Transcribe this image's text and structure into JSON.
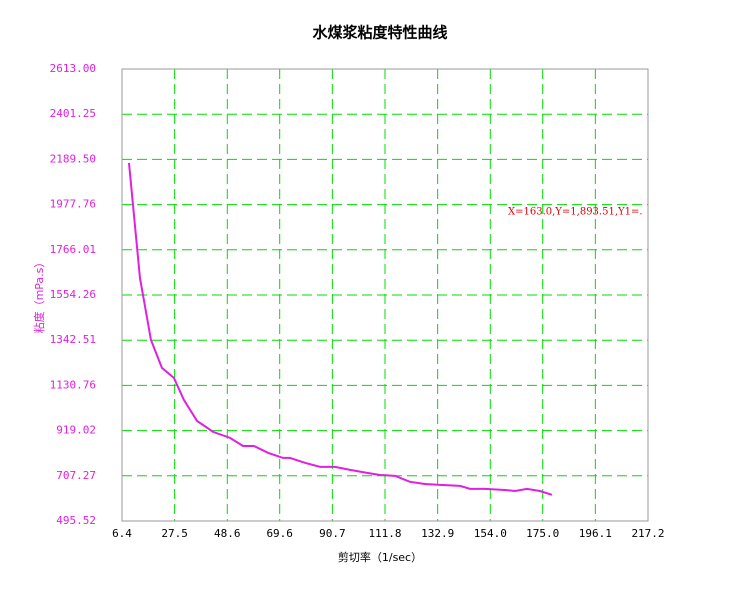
{
  "chart_data": {
    "type": "line",
    "title": "水煤浆粘度特性曲线",
    "xlabel": "剪切率（1/sec）",
    "ylabel": "粘度（mPa.s）",
    "annotation": "X=163.0,Y=1,893.51,Y1=.",
    "x": [
      9.2,
      13.6,
      18.0,
      22.4,
      27.2,
      31.2,
      36.5,
      42.9,
      49.7,
      54.9,
      59.3,
      64.9,
      70.9,
      73.7,
      79.7,
      85.8,
      91.8,
      97.8,
      104.6,
      109.8,
      115.8,
      121.8,
      127.8,
      133.9,
      141.9,
      145.9,
      151.9,
      159.9,
      163.9,
      168.7,
      173.9,
      178.7
    ],
    "series": [
      {
        "name": "粘度",
        "color": "#e020e0",
        "values": [
          2173,
          1634,
          1344,
          1213,
          1166,
          1063,
          964,
          913,
          885,
          847,
          847,
          815,
          791,
          791,
          768,
          749,
          749,
          735,
          721,
          711,
          707,
          679,
          669,
          665,
          660,
          646,
          646,
          641,
          636,
          646,
          636,
          618
        ]
      }
    ],
    "xlim": [
      6.4,
      217.2
    ],
    "xticks": [
      6.4,
      27.5,
      48.6,
      69.6,
      90.7,
      111.8,
      132.9,
      {
        "value": 154.0,
        "label": "154.0"
      },
      {
        "value": 175.0,
        "label": "175.0"
      },
      196.1,
      217.2
    ],
    "ylim": [
      495.52,
      2613.0
    ],
    "yticks": [
      {
        "value": 495.52,
        "label": "495.52"
      },
      {
        "value": 707.27,
        "label": "707.27"
      },
      {
        "value": 919.02,
        "label": "919.02"
      },
      {
        "value": 1130.76,
        "label": "1130.76"
      },
      {
        "value": 1342.51,
        "label": "1342.51"
      },
      {
        "value": 1554.26,
        "label": "1554.26"
      },
      {
        "value": 1766.01,
        "label": "1766.01"
      },
      {
        "value": 1977.76,
        "label": "1977.76"
      },
      {
        "value": 2189.5,
        "label": "2189.50"
      },
      {
        "value": 2401.25,
        "label": "2401.25"
      },
      {
        "value": 2613.0,
        "label": "2613.00"
      }
    ],
    "grid": true,
    "grid_color": "#00dd00",
    "ytick_color": "#e020e0",
    "annotation_color": "#dd0000"
  }
}
